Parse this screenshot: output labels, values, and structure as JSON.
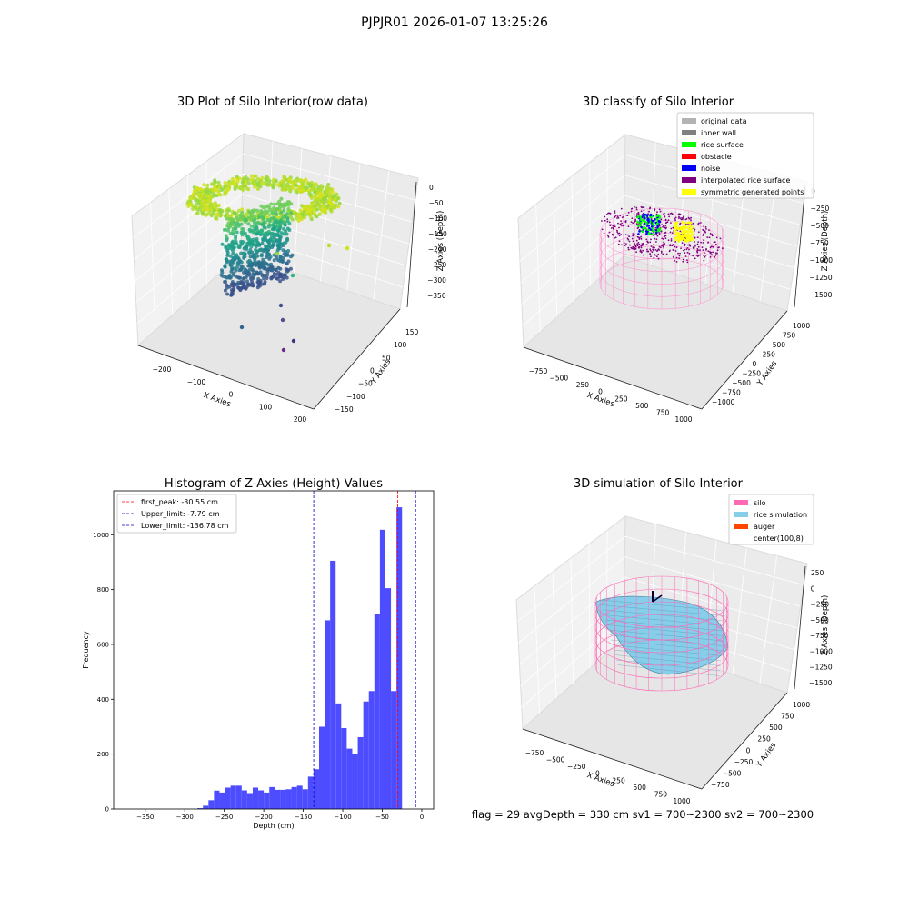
{
  "suptitle": "PJPJR01 2026-01-07 13:25:26",
  "footer": "flag = 29  avgDepth = 330 cm  sv1 = 700~2300  sv2 = 700~2300",
  "colors": {
    "hist_bar": "#4d4dff",
    "first_peak_line": "#ff0000",
    "limit_line": "#0000cc",
    "silo": "#ff69b4",
    "rice_simulation": "#87ceeb",
    "auger": "#ff4500",
    "interpolated": "#800080",
    "symmetric": "#ffff00",
    "rice_surface": "#00ff00",
    "noise": "#0000ff"
  },
  "panel1": {
    "title": "3D Plot of Silo Interior(row data)",
    "xlabel": "X Axies",
    "ylabel": "Y Axies",
    "zlabel": "Z Axies (Depth)",
    "xticks": [
      "−200",
      "−100",
      "0",
      "100",
      "200"
    ],
    "yticks": [
      "−150",
      "−100",
      "−50",
      "0",
      "50",
      "100",
      "150"
    ],
    "zticks": [
      "0",
      "−50",
      "−100",
      "−150",
      "−200",
      "−250",
      "−300",
      "−350"
    ]
  },
  "panel2": {
    "title": "3D classify of Silo Interior",
    "xlabel": "X Axies",
    "ylabel": "Y Axies",
    "zlabel": "Z Axies (Depth)",
    "xticks": [
      "−750",
      "−500",
      "−250",
      "0",
      "250",
      "500",
      "750",
      "1000"
    ],
    "yticks": [
      "−1000",
      "−750",
      "−500",
      "−250",
      "0",
      "250",
      "500",
      "750",
      "1000"
    ],
    "zticks": [
      "0",
      "−250",
      "−500",
      "−750",
      "−1000",
      "−1250",
      "−1500"
    ],
    "legend": [
      {
        "label": "original data",
        "color": "#b3b3b3"
      },
      {
        "label": "inner wall",
        "color": "#808080"
      },
      {
        "label": "rice surface",
        "color": "#00ff00"
      },
      {
        "label": "obstacle",
        "color": "#ff0000"
      },
      {
        "label": "noise",
        "color": "#0000ff"
      },
      {
        "label": "interpolated rice surface",
        "color": "#800080"
      },
      {
        "label": "symmetric generated points",
        "color": "#ffff00"
      }
    ]
  },
  "panel4": {
    "title": "3D simulation of Silo Interior",
    "xlabel": "X Axies",
    "ylabel": "Y Axies",
    "zlabel": "Z Axies (Depth)",
    "xticks": [
      "−750",
      "−500",
      "−250",
      "0",
      "250",
      "500",
      "750",
      "1000"
    ],
    "yticks": [
      "−750",
      "−500",
      "−250",
      "0",
      "250",
      "500",
      "750",
      "1000"
    ],
    "zticks": [
      "250",
      "0",
      "−250",
      "−500",
      "−750",
      "−1000",
      "−1250",
      "−1500"
    ],
    "legend": [
      {
        "label": "silo",
        "color": "#ff69b4"
      },
      {
        "label": "rice simulation",
        "color": "#87ceeb"
      },
      {
        "label": "auger",
        "color": "#ff4500"
      },
      {
        "label": "center(100,8)",
        "color": null
      }
    ]
  },
  "chart_data": {
    "type": "bar",
    "title": "Histogram of Z-Axies (Height) Values",
    "xlabel": "Depth (cm)",
    "ylabel": "Frequency",
    "xlim": [
      -390,
      15
    ],
    "ylim": [
      0,
      1160
    ],
    "xticks": [
      -350,
      -300,
      -250,
      -200,
      -150,
      -100,
      -50,
      0
    ],
    "yticks": [
      0,
      200,
      400,
      600,
      800,
      1000
    ],
    "bin_width": 7,
    "bins_start": [
      -284,
      -277,
      -270,
      -263,
      -256,
      -249,
      -242,
      -235,
      -228,
      -221,
      -214,
      -207,
      -200,
      -193,
      -186,
      -179,
      -172,
      -165,
      -158,
      -151,
      -144,
      -137,
      -130,
      -123,
      -116,
      -109,
      -102,
      -95,
      -88,
      -81,
      -74,
      -67,
      -60,
      -53,
      -46,
      -39,
      -32,
      -25,
      -18,
      -11,
      -4
    ],
    "values": [
      3,
      12,
      32,
      67,
      60,
      78,
      85,
      85,
      68,
      58,
      78,
      68,
      60,
      80,
      70,
      70,
      72,
      80,
      85,
      72,
      118,
      145,
      300,
      688,
      905,
      385,
      295,
      220,
      200,
      262,
      392,
      430,
      712,
      1018,
      805,
      430,
      1100,
      0,
      0,
      0,
      0
    ],
    "lines": [
      {
        "label": "first_peak: -30.55 cm",
        "x": -30.55,
        "style": "dashed",
        "color": "#ff0000"
      },
      {
        "label": "Upper_limit: -7.79 cm",
        "x": -7.79,
        "style": "dashed",
        "color": "#0000cc"
      },
      {
        "label": "Lower_limit: -136.78 cm",
        "x": -136.78,
        "style": "dashed",
        "color": "#0000cc"
      }
    ],
    "legend_position": "upper-left"
  }
}
